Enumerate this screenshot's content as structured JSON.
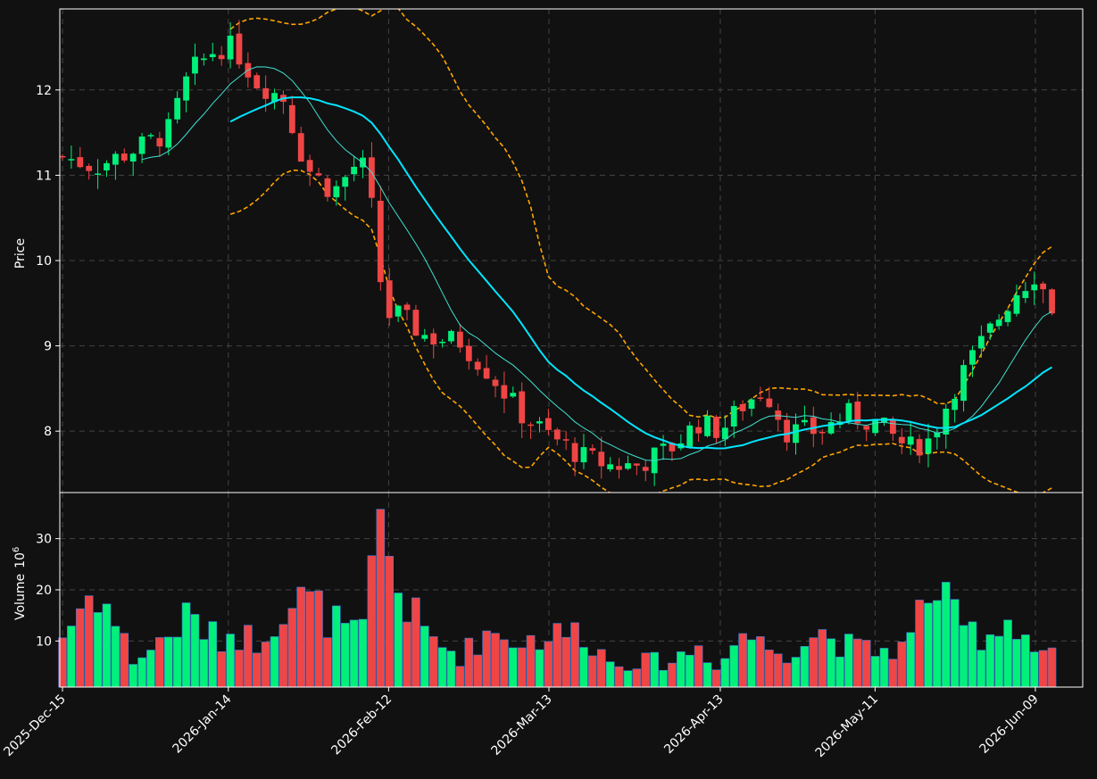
{
  "theme": {
    "background": "#111111",
    "up_color": "#00f07a",
    "down_color": "#f04545",
    "grid_color": "#444444",
    "axis_color": "#ffffff",
    "text_color": "#ffffff",
    "ma_fast_color": "#40e0d0",
    "ma_slow_color": "#00e5ff",
    "band_color": "#ffa500"
  },
  "chart_data": {
    "type": "candlestick",
    "grid": true,
    "price_panel": {
      "ylabel": "Price",
      "ylim": [
        7.28,
        12.95
      ],
      "yticks": [
        8,
        9,
        10,
        11,
        12
      ]
    },
    "volume_panel": {
      "ylabel": "Volume",
      "ylabel_exponent": "10",
      "ylabel_exponent_power": "6",
      "ylim": [
        1,
        39
      ],
      "yticks": [
        10,
        20,
        30
      ]
    },
    "xaxis": {
      "start_date": "2025-12-15",
      "tick_labels": [
        {
          "label": "2025-Dec-15",
          "date": "2025-12-15"
        },
        {
          "label": "2026-Jan-14",
          "date": "2026-01-14"
        },
        {
          "label": "2026-Feb-12",
          "date": "2026-02-12"
        },
        {
          "label": "2026-Mar-13",
          "date": "2026-03-13"
        },
        {
          "label": "2026-Apr-13",
          "date": "2026-04-13"
        },
        {
          "label": "2026-May-11",
          "date": "2026-05-11"
        },
        {
          "label": "2026-Jun-09",
          "date": "2026-06-09"
        }
      ]
    },
    "anchors": [
      [
        "2025-12-15",
        11.22,
        11
      ],
      [
        "2025-12-21",
        11.1,
        21
      ],
      [
        "2025-12-28",
        11.3,
        6
      ],
      [
        "2026-01-03",
        11.5,
        11
      ],
      [
        "2026-01-07",
        12.2,
        15
      ],
      [
        "2026-01-12",
        12.5,
        10
      ],
      [
        "2026-01-15",
        12.5,
        12
      ],
      [
        "2026-01-19",
        12.1,
        10
      ],
      [
        "2026-01-24",
        11.9,
        17
      ],
      [
        "2026-01-28",
        11.1,
        18
      ],
      [
        "2026-02-02",
        10.8,
        14
      ],
      [
        "2026-02-07",
        11.2,
        10
      ],
      [
        "2026-02-10",
        10.3,
        29
      ],
      [
        "2026-02-11",
        9.3,
        36
      ],
      [
        "2026-02-13",
        9.4,
        21
      ],
      [
        "2026-02-19",
        9.1,
        11
      ],
      [
        "2026-02-25",
        9.05,
        7
      ],
      [
        "2026-03-02",
        8.7,
        12
      ],
      [
        "2026-03-08",
        8.2,
        10
      ],
      [
        "2026-03-13",
        7.95,
        11
      ],
      [
        "2026-03-19",
        7.7,
        12
      ],
      [
        "2026-03-24",
        7.6,
        6
      ],
      [
        "2026-03-29",
        7.6,
        6
      ],
      [
        "2026-04-04",
        7.8,
        6
      ],
      [
        "2026-04-09",
        8.1,
        9
      ],
      [
        "2026-04-13",
        8.0,
        5
      ],
      [
        "2026-04-17",
        8.3,
        12
      ],
      [
        "2026-04-21",
        8.5,
        9
      ],
      [
        "2026-04-25",
        8.0,
        8
      ],
      [
        "2026-05-01",
        8.0,
        12
      ],
      [
        "2026-05-06",
        8.2,
        9
      ],
      [
        "2026-05-11",
        8.1,
        8
      ],
      [
        "2026-05-17",
        7.8,
        9
      ],
      [
        "2026-05-21",
        7.9,
        22
      ],
      [
        "2026-05-26",
        8.6,
        13
      ],
      [
        "2026-05-31",
        9.1,
        11
      ],
      [
        "2026-06-05",
        9.6,
        15
      ],
      [
        "2026-06-09",
        9.85,
        8
      ],
      [
        "2026-06-12",
        9.45,
        8
      ]
    ],
    "series": [
      {
        "name": "",
        "kind": "candles"
      },
      {
        "name": "",
        "kind": "moving-average",
        "window": 10
      },
      {
        "name": "",
        "kind": "moving-average",
        "window": 20
      },
      {
        "name": "",
        "kind": "band",
        "window": 20,
        "width": 2
      }
    ]
  }
}
